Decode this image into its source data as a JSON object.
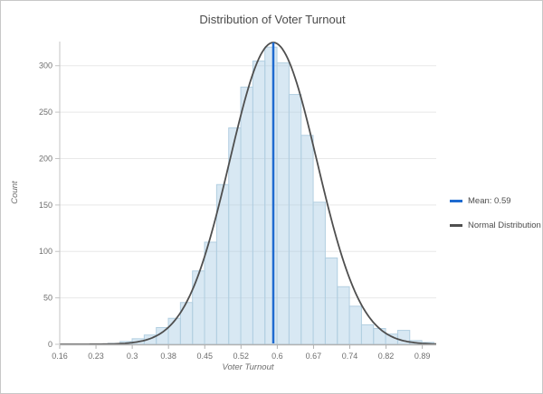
{
  "window": {
    "background": "#ffffff",
    "border_color": "#c8c8c8"
  },
  "chart_data": {
    "type": "histogram",
    "title": "Distribution of Voter Turnout",
    "xlabel": "Voter Turnout",
    "ylabel": "Count",
    "x_tick_labels": [
      "0.16",
      "0.23",
      "0.3",
      "0.38",
      "0.45",
      "0.52",
      "0.6",
      "0.67",
      "0.74",
      "0.82",
      "0.89"
    ],
    "x_tick_values": [
      0.16,
      0.233,
      0.306,
      0.379,
      0.452,
      0.525,
      0.598,
      0.671,
      0.744,
      0.817,
      0.89
    ],
    "y_tick_values": [
      0,
      50,
      100,
      150,
      200,
      250,
      300
    ],
    "x_range": [
      0.16,
      0.918
    ],
    "y_range": [
      0,
      326
    ],
    "grid_on": true,
    "legend_position": "right",
    "bins": {
      "start": 0.16,
      "width": 0.0243,
      "counts": [
        0,
        0,
        0,
        0,
        1,
        3,
        6,
        10,
        18,
        28,
        45,
        79,
        110,
        172,
        233,
        277,
        305,
        320,
        303,
        269,
        225,
        153,
        93,
        62,
        41,
        21,
        17,
        11,
        15,
        4,
        2
      ]
    },
    "mean_line": {
      "value": 0.59,
      "label": "Mean: 0.59",
      "color": "#1f6bd0"
    },
    "normal_curve": {
      "label": "Normal Distribution",
      "mu": 0.59,
      "sigma": 0.088,
      "peak_count": 325,
      "color": "#4f4f4f"
    },
    "style": {
      "bar_fill": "rgba(168,204,228,0.45)",
      "bar_stroke": "#b2cfe1",
      "grid_color": "#e8e8e8",
      "axis_color": "#c4c4c4",
      "baseline_color": "#b2b2b2",
      "tick_label_color": "#6e6e6e",
      "title_color": "#4a4a4a"
    }
  },
  "legend": {
    "items": [
      {
        "label": "Mean: 0.59",
        "color": "#1f6bd0"
      },
      {
        "label": "Normal Distribution",
        "color": "#4f4f4f"
      }
    ]
  }
}
